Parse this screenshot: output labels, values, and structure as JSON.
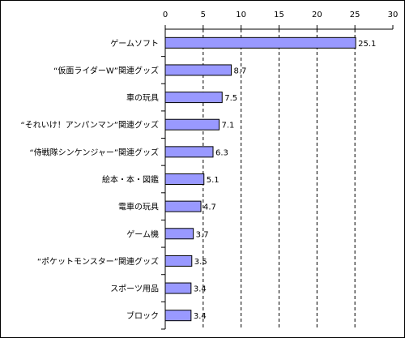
{
  "chart_data": {
    "type": "bar",
    "orientation": "horizontal",
    "categories": [
      "ゲームソフト",
      "“仮面ライダーW”関連グッズ",
      "車の玩具",
      "“それいけ！アンパンマン”関連グッズ",
      "“侍戦隊シンケンジャー”関連グッズ",
      "絵本・本・図鑑",
      "電車の玩具",
      "ゲーム機",
      "“ポケットモンスター”関連グッズ",
      "スポーツ用品",
      "ブロック"
    ],
    "values": [
      25.1,
      8.7,
      7.5,
      7.1,
      6.3,
      5.1,
      4.7,
      3.7,
      3.5,
      3.4,
      3.4
    ],
    "data_labels": [
      "25.1",
      "8.7",
      "7.5",
      "7.1",
      "6.3",
      "5.1",
      "4.7",
      "3.7",
      "3.5",
      "3.4",
      "3.4"
    ],
    "xlim": [
      0,
      30
    ],
    "x_ticks": [
      "0",
      "5",
      "10",
      "15",
      "20",
      "25",
      "30"
    ],
    "axis_position": "top",
    "grid": "vertical dashed",
    "legend": "none",
    "bar_color": "#9999ff",
    "bar_edge_color": "#000000"
  }
}
